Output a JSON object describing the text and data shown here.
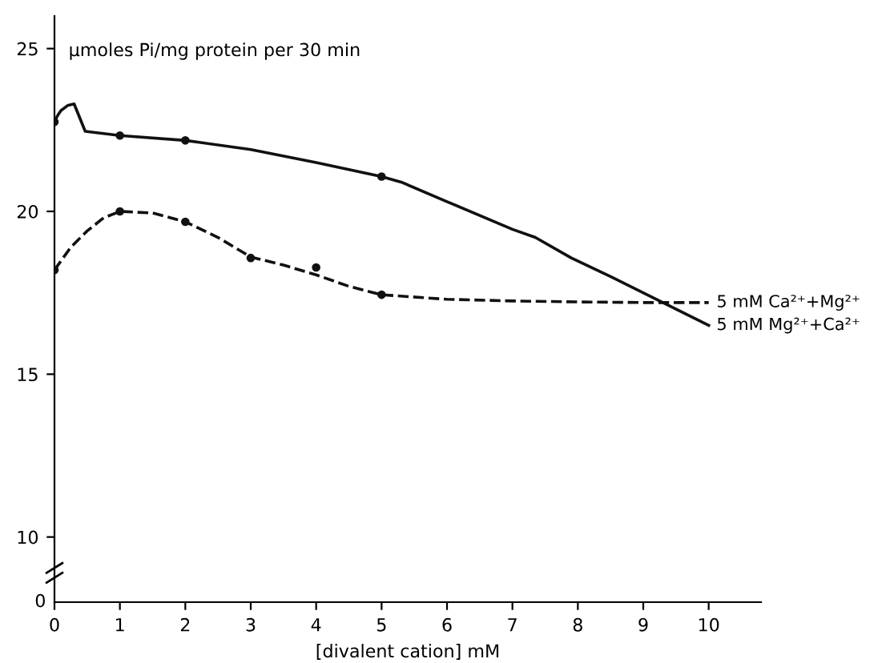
{
  "chart_data": {
    "type": "line",
    "ylabel": "μmoles Pi/mg protein per 30 min",
    "xlabel": "[divalent cation] mM",
    "xlim": [
      0,
      10.8
    ],
    "xticks": [
      0,
      1,
      2,
      3,
      4,
      5,
      6,
      7,
      8,
      9,
      10
    ],
    "ylim": [
      8,
      26
    ],
    "yticks": [
      10,
      15,
      20,
      25
    ],
    "grid": false,
    "legend": false,
    "annotations": [
      "0"
    ],
    "series": [
      {
        "name": "5 mM Ca²⁺+Mg²⁺",
        "color": "#111111",
        "line_style": "dashed",
        "marker": "none",
        "x": [
          0,
          0.25,
          0.5,
          0.75,
          1,
          1.5,
          2,
          2.5,
          3,
          3.5,
          4,
          4.5,
          5,
          6,
          7,
          8,
          9,
          10
        ],
        "values": [
          18.2,
          18.9,
          19.4,
          19.8,
          20.0,
          19.95,
          19.68,
          19.2,
          18.6,
          18.35,
          18.05,
          17.7,
          17.44,
          17.3,
          17.25,
          17.22,
          17.2,
          17.2
        ]
      },
      {
        "name": "5 mM Mg²⁺+Ca²⁺",
        "color": "#111111",
        "line_style": "solid",
        "marker": "none",
        "x": [
          0,
          0.05,
          0.1,
          0.2,
          0.3,
          0.47,
          1,
          2,
          3,
          4,
          5,
          5.3,
          6,
          7,
          7.35,
          7.9,
          8.5,
          9.3,
          10
        ],
        "values": [
          22.75,
          22.95,
          23.1,
          23.25,
          23.3,
          22.46,
          22.33,
          22.18,
          21.9,
          21.5,
          21.07,
          20.9,
          20.3,
          19.45,
          19.2,
          18.57,
          18.0,
          17.2,
          16.5
        ]
      },
      {
        "type": "scatter",
        "color": "#111111",
        "marker": "circle",
        "x": [
          0,
          1,
          2,
          3,
          4,
          5
        ],
        "values": [
          18.2,
          20.0,
          19.68,
          18.57,
          18.28,
          17.44
        ]
      },
      {
        "type": "scatter",
        "color": "#111111",
        "marker": "circle",
        "x": [
          0,
          1,
          2,
          5
        ],
        "values": [
          22.75,
          22.33,
          22.18,
          21.07
        ]
      }
    ]
  }
}
